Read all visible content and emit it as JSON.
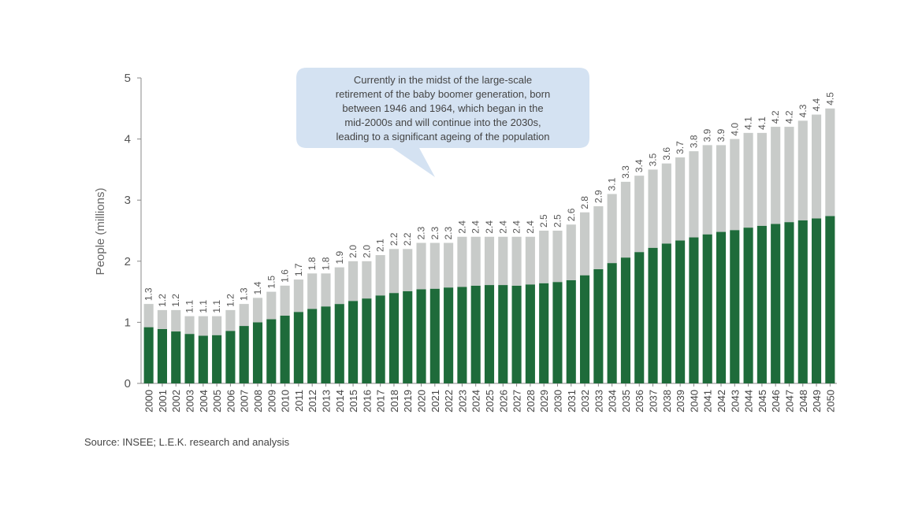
{
  "chart_data": {
    "type": "bar",
    "stacked": true,
    "ylabel": "People (millions)",
    "ylim": [
      0,
      5
    ],
    "yticks": [
      0,
      1,
      2,
      3,
      4,
      5
    ],
    "categories": [
      "2000",
      "2001",
      "2002",
      "2003",
      "2004",
      "2005",
      "2006",
      "2007",
      "2008",
      "2009",
      "2010",
      "2011",
      "2012",
      "2013",
      "2014",
      "2015",
      "2016",
      "2017",
      "2018",
      "2019",
      "2020",
      "2021",
      "2022",
      "2023",
      "2024",
      "2025",
      "2026",
      "2027",
      "2028",
      "2029",
      "2030",
      "2031",
      "2032",
      "2033",
      "2034",
      "2035",
      "2036",
      "2037",
      "2038",
      "2039",
      "2040",
      "2041",
      "2042",
      "2043",
      "2044",
      "2045",
      "2046",
      "2047",
      "2048",
      "2049",
      "2050"
    ],
    "series": [
      {
        "color": "#1e6b3a",
        "values": [
          0.92,
          0.89,
          0.85,
          0.81,
          0.78,
          0.79,
          0.86,
          0.94,
          1.0,
          1.05,
          1.11,
          1.17,
          1.22,
          1.26,
          1.3,
          1.35,
          1.39,
          1.44,
          1.48,
          1.51,
          1.54,
          1.55,
          1.57,
          1.58,
          1.6,
          1.61,
          1.61,
          1.6,
          1.62,
          1.64,
          1.66,
          1.69,
          1.77,
          1.87,
          1.97,
          2.06,
          2.15,
          2.22,
          2.29,
          2.34,
          2.39,
          2.44,
          2.48,
          2.51,
          2.55,
          2.58,
          2.61,
          2.64,
          2.67,
          2.7,
          2.74
        ]
      },
      {
        "color": "#c8cbc9",
        "values": [
          0.38,
          0.31,
          0.35,
          0.29,
          0.32,
          0.31,
          0.34,
          0.36,
          0.4,
          0.45,
          0.49,
          0.53,
          0.58,
          0.54,
          0.6,
          0.65,
          0.61,
          0.66,
          0.72,
          0.69,
          0.76,
          0.75,
          0.73,
          0.82,
          0.8,
          0.79,
          0.79,
          0.8,
          0.78,
          0.86,
          0.84,
          0.91,
          1.03,
          1.03,
          1.13,
          1.24,
          1.25,
          1.28,
          1.31,
          1.36,
          1.41,
          1.46,
          1.42,
          1.49,
          1.55,
          1.52,
          1.59,
          1.56,
          1.63,
          1.7,
          1.76
        ]
      }
    ],
    "totals_labels": [
      "1.3",
      "1.2",
      "1.2",
      "1.1",
      "1.1",
      "1.1",
      "1.2",
      "1.3",
      "1.4",
      "1.5",
      "1.6",
      "1.7",
      "1.8",
      "1.8",
      "1.9",
      "2.0",
      "2.0",
      "2.1",
      "2.2",
      "2.2",
      "2.3",
      "2.3",
      "2.3",
      "2.4",
      "2.4",
      "2.4",
      "2.4",
      "2.4",
      "2.4",
      "2.5",
      "2.5",
      "2.6",
      "2.8",
      "2.9",
      "3.1",
      "3.3",
      "3.4",
      "3.5",
      "3.6",
      "3.7",
      "3.8",
      "3.9",
      "3.9",
      "4.0",
      "4.1",
      "4.1",
      "4.2",
      "4.2",
      "4.3",
      "4.4",
      "4.5"
    ],
    "grid": false,
    "annotation": "Currently in the midst of the large-scale retirement of the baby boomer generation, born between 1946 and 1964, which began in the mid-2000s and will continue into the 2030s, leading to a significant ageing of the population",
    "annotation_lines": [
      "Currently in the midst of the large-scale",
      "retirement of the baby boomer generation, born",
      "between 1946 and 1964, which began in the",
      "mid-2000s and will continue into the 2030s,",
      "leading to a significant ageing of the population"
    ]
  },
  "colors": {
    "callout_bg": "#d4e2f2",
    "axis": "#888888"
  },
  "source": "Source: INSEE; L.E.K. research and analysis"
}
